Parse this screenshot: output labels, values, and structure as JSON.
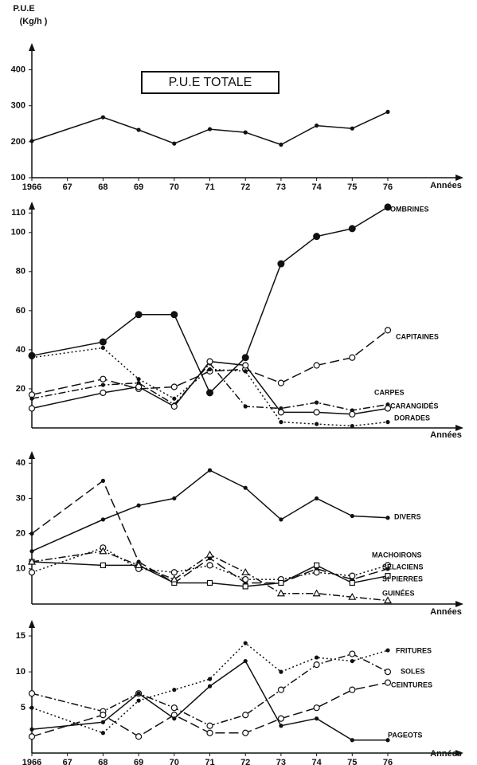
{
  "chart_data": [
    {
      "type": "line",
      "title": "P.U.E TOTALE",
      "ylabel": [
        "P.U.E",
        "(Kg/h )"
      ],
      "xlabel": "Années",
      "color": "#111111",
      "xlim": [
        1966,
        1976
      ],
      "ylim": [
        100,
        470
      ],
      "yticks": [
        100,
        200,
        300,
        400
      ],
      "xticks": [
        1966,
        {
          "value": 1967,
          "label": "67"
        },
        {
          "value": 1968,
          "label": "68"
        },
        {
          "value": 1969,
          "label": "69"
        },
        {
          "value": 1970,
          "label": "70"
        },
        {
          "value": 1971,
          "label": "71"
        },
        {
          "value": 1972,
          "label": "72"
        },
        {
          "value": 1973,
          "label": "73"
        },
        {
          "value": 1974,
          "label": "74"
        },
        {
          "value": 1975,
          "label": "75"
        },
        {
          "value": 1976,
          "label": "76"
        }
      ],
      "x": [
        1966,
        1968,
        1969,
        1970,
        1971,
        1972,
        1973,
        1974,
        1975,
        1976
      ],
      "series": [
        {
          "color": "#111111",
          "style": "solid",
          "marker": "dot",
          "values": [
            202,
            268,
            233,
            195,
            235,
            226,
            192,
            245,
            237,
            283
          ]
        }
      ]
    },
    {
      "type": "line",
      "xlabel": "Années",
      "xlim": [
        1966,
        1976
      ],
      "ylim": [
        0,
        115
      ],
      "yticks": [
        20,
        40,
        60,
        80,
        100,
        110
      ],
      "x": [
        1966,
        1968,
        1969,
        1970,
        1971,
        1972,
        1973,
        1974,
        1975,
        1976
      ],
      "series": [
        {
          "name": "OMBRINES",
          "color": "#111111",
          "style": "solid",
          "marker": "big",
          "values": [
            37,
            44,
            58,
            58,
            18,
            36,
            84,
            98,
            102,
            113
          ]
        },
        {
          "name": "CAPITAINES",
          "color": "#111111",
          "style": "dashed",
          "marker": "open",
          "values": [
            17,
            25,
            20,
            21,
            29,
            30,
            23,
            32,
            36,
            50
          ]
        },
        {
          "name": "CARPES",
          "color": "#111111",
          "style": "dashdot",
          "marker": "dot",
          "values": [
            15,
            22,
            23,
            12,
            33,
            11,
            10,
            13,
            9,
            12
          ]
        },
        {
          "name": "CARANGIDÉS",
          "color": "#111111",
          "style": "solid",
          "marker": "open",
          "values": [
            10,
            18,
            21,
            11,
            34,
            32,
            8,
            8,
            7,
            10
          ]
        },
        {
          "name": "DORADES",
          "color": "#111111",
          "style": "dotted",
          "marker": "dot",
          "values": [
            36,
            41,
            25,
            15,
            30,
            29,
            3,
            2,
            1,
            3
          ]
        }
      ]
    },
    {
      "type": "line",
      "xlabel": "Années",
      "xlim": [
        1966,
        1976
      ],
      "ylim": [
        0,
        43
      ],
      "yticks": [
        10,
        20,
        30,
        40
      ],
      "x": [
        1966,
        1968,
        1969,
        1970,
        1971,
        1972,
        1973,
        1974,
        1975,
        1976
      ],
      "series": [
        {
          "name": "DIVERS",
          "color": "#111111",
          "style": "solid",
          "marker": "dot",
          "values": [
            15,
            24,
            28,
            30,
            38,
            33,
            24,
            30,
            25,
            24.5
          ]
        },
        {
          "name": "MACHOIRONS",
          "color": "#111111",
          "style": "dashed",
          "marker": "dot",
          "values": [
            20,
            35,
            12,
            6,
            13,
            6,
            6,
            10,
            7,
            10
          ]
        },
        {
          "name": "SELACIENS",
          "color": "#111111",
          "style": "dotted",
          "marker": "open",
          "values": [
            9,
            16,
            10,
            9,
            11,
            7,
            7,
            9,
            8,
            11
          ]
        },
        {
          "name": "St PIERRES",
          "color": "#111111",
          "style": "solid",
          "marker": "square",
          "values": [
            12,
            11,
            11,
            6,
            6,
            5,
            6,
            11,
            6,
            8
          ]
        },
        {
          "name": "GUINÉES",
          "color": "#111111",
          "style": "dashdot",
          "marker": "triangle",
          "values": [
            12,
            15,
            11,
            7,
            14,
            9,
            3,
            3,
            2,
            1
          ]
        }
      ]
    },
    {
      "type": "line",
      "xlabel": "Années",
      "xlim": [
        1966,
        1976
      ],
      "ylim": [
        -1.3,
        17
      ],
      "yticks": [
        5,
        10,
        15
      ],
      "xticks": [
        1966,
        {
          "value": 1967,
          "label": "67"
        },
        {
          "value": 1968,
          "label": "68"
        },
        {
          "value": 1969,
          "label": "69"
        },
        {
          "value": 1970,
          "label": "70"
        },
        {
          "value": 1971,
          "label": "71"
        },
        {
          "value": 1972,
          "label": "72"
        },
        {
          "value": 1973,
          "label": "73"
        },
        {
          "value": 1974,
          "label": "74"
        },
        {
          "value": 1975,
          "label": "75"
        },
        {
          "value": 1976,
          "label": "76"
        }
      ],
      "x": [
        1966,
        1968,
        1969,
        1970,
        1971,
        1972,
        1973,
        1974,
        1975,
        1976
      ],
      "series": [
        {
          "name": "FRITURES",
          "color": "#111111",
          "style": "dotted",
          "marker": "dot",
          "values": [
            5,
            1.5,
            6,
            7.5,
            9,
            14,
            10,
            12,
            11.5,
            13
          ]
        },
        {
          "name": "SOLES",
          "color": "#111111",
          "style": "dashdot",
          "marker": "open",
          "values": [
            7,
            4.5,
            7,
            5,
            2.5,
            4,
            7.5,
            11,
            12.5,
            10
          ]
        },
        {
          "name": "CEINTURES",
          "color": "#111111",
          "style": "dashed",
          "marker": "open",
          "values": [
            1,
            4,
            1,
            4,
            1.5,
            1.5,
            3.5,
            5,
            7.5,
            8.5
          ]
        },
        {
          "name": "PAGEOTS",
          "color": "#111111",
          "style": "solid",
          "marker": "dot",
          "values": [
            2,
            3,
            7,
            3.5,
            8,
            11.5,
            2.5,
            3.5,
            0.5,
            0.5
          ]
        }
      ]
    }
  ]
}
